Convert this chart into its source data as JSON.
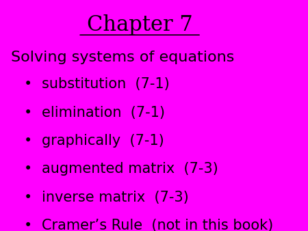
{
  "title": "Chapter 7",
  "background_color": "#FF00FF",
  "text_color": "#000000",
  "subtitle": "Solving systems of equations",
  "bullet_items": [
    "substitution  (7-1)",
    "elimination  (7-1)",
    "graphically  (7-1)",
    "augmented matrix  (7-3)",
    "inverse matrix  (7-3)",
    "Cramer’s Rule  (not in this book)"
  ],
  "title_fontsize": 22,
  "subtitle_fontsize": 16,
  "bullet_fontsize": 15,
  "bullet_char": "•"
}
